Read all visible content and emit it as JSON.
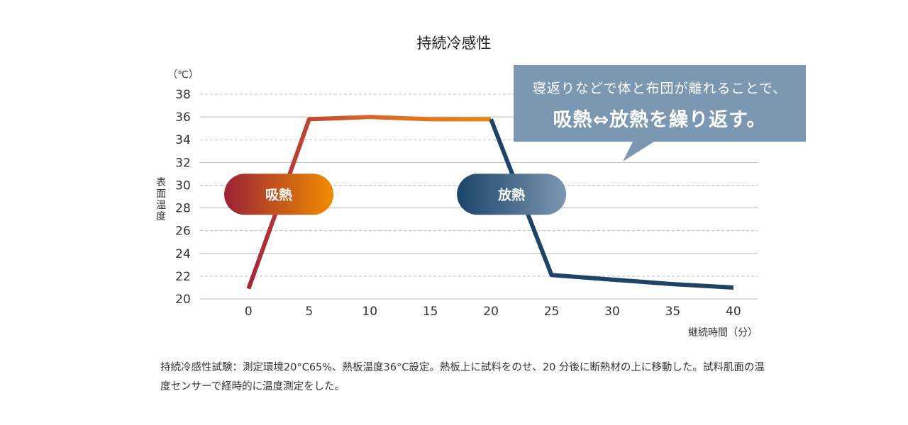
{
  "chart_data": {
    "type": "line",
    "title": "持続冷感性",
    "ylabel": "表面温度",
    "yunit": "（℃）",
    "xlabel": "継続時間（分）",
    "ylim": [
      20,
      38
    ],
    "xlim": [
      -4,
      42
    ],
    "yticks": [
      20,
      22,
      24,
      26,
      28,
      30,
      32,
      34,
      36,
      38
    ],
    "xticks": [
      0,
      5,
      10,
      15,
      20,
      25,
      30,
      35,
      40
    ],
    "series": [
      {
        "name": "表面温度",
        "x": [
          0,
          2.5,
          5,
          10,
          15,
          20,
          25,
          30,
          35,
          40
        ],
        "y": [
          20.9,
          28.3,
          35.8,
          36.0,
          35.8,
          35.8,
          22.1,
          21.7,
          21.3,
          21.0
        ]
      }
    ],
    "annotations": [
      {
        "id": "absorb",
        "label": "吸熱",
        "x": 2.5,
        "y": 29.2
      },
      {
        "id": "release",
        "label": "放熱",
        "x": 21.7,
        "y": 29.2
      }
    ]
  },
  "colors": {
    "absorb_start": "#9a2236",
    "absorb_end": "#f08c00",
    "release_start": "#1c4469",
    "release_end": "#7b97b2",
    "line_hot_start": "#a3283b",
    "line_hot_mid": "#d9672a",
    "line_hot_end": "#e8880f",
    "line_cool": "#1f4366",
    "callout_bg": "#7b97b2"
  },
  "callout": {
    "line1": "寝返りなどで体と布団が離れることで、",
    "line2": "吸熱⇔放熱を繰り返す。"
  },
  "note": "持続冷感性試験：測定環境20°C65%、熱板温度36°C設定。熱板上に試料をのせ、20 分後に断熱材の上に移動した。試料肌面の温度センサーで経時的に温度測定をした。"
}
